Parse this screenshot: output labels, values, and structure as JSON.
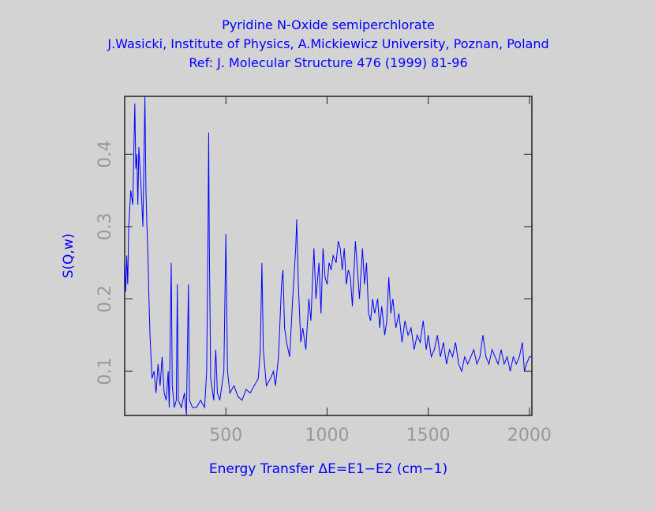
{
  "chart_data": {
    "type": "line",
    "title": [
      "Pyridine N-Oxide semiperchlorate",
      "J.Wasicki, Institute of Physics, A.Mickiewicz University, Poznan, Poland",
      "Ref: J. Molecular Structure 476 (1999) 81-96"
    ],
    "x_label": "Energy Transfer ΔE=E1−E2 (cm−1)",
    "y_label": "S(Q,w)",
    "xlim": [
      0,
      2012
    ],
    "ylim": [
      0.039,
      0.48
    ],
    "xticks": [
      500,
      1000,
      1500,
      2000
    ],
    "yticks": [
      0.1,
      0.2,
      0.3,
      0.4
    ],
    "series": [
      {
        "color": "#0000ff",
        "x": [
          0,
          5,
          10,
          15,
          20,
          30,
          40,
          50,
          55,
          60,
          65,
          70,
          80,
          90,
          100,
          105,
          110,
          115,
          120,
          125,
          135,
          145,
          155,
          165,
          175,
          185,
          195,
          205,
          215,
          220,
          230,
          235,
          245,
          255,
          260,
          265,
          280,
          295,
          305,
          315,
          320,
          335,
          355,
          375,
          395,
          405,
          412,
          415,
          418,
          425,
          440,
          450,
          458,
          470,
          490,
          500,
          508,
          520,
          540,
          560,
          580,
          600,
          620,
          640,
          660,
          670,
          678,
          685,
          700,
          720,
          735,
          745,
          760,
          775,
          782,
          790,
          800,
          815,
          830,
          845,
          850,
          858,
          870,
          880,
          895,
          910,
          920,
          935,
          945,
          960,
          970,
          980,
          990,
          1000,
          1010,
          1020,
          1030,
          1045,
          1055,
          1065,
          1075,
          1085,
          1095,
          1105,
          1115,
          1125,
          1140,
          1150,
          1160,
          1175,
          1185,
          1195,
          1205,
          1215,
          1225,
          1235,
          1250,
          1260,
          1270,
          1285,
          1295,
          1305,
          1315,
          1325,
          1340,
          1355,
          1370,
          1385,
          1400,
          1415,
          1430,
          1445,
          1460,
          1475,
          1490,
          1500,
          1515,
          1530,
          1545,
          1560,
          1575,
          1590,
          1605,
          1620,
          1635,
          1650,
          1665,
          1680,
          1695,
          1710,
          1725,
          1740,
          1755,
          1770,
          1785,
          1800,
          1815,
          1830,
          1845,
          1860,
          1875,
          1890,
          1905,
          1920,
          1935,
          1950,
          1965,
          1975,
          1985,
          2000,
          2012
        ],
        "values": [
          0.25,
          0.21,
          0.26,
          0.22,
          0.3,
          0.35,
          0.33,
          0.47,
          0.38,
          0.4,
          0.33,
          0.41,
          0.36,
          0.3,
          0.48,
          0.35,
          0.3,
          0.26,
          0.2,
          0.15,
          0.09,
          0.1,
          0.07,
          0.11,
          0.08,
          0.12,
          0.07,
          0.06,
          0.1,
          0.05,
          0.25,
          0.08,
          0.05,
          0.06,
          0.22,
          0.06,
          0.05,
          0.07,
          0.04,
          0.22,
          0.06,
          0.05,
          0.05,
          0.06,
          0.05,
          0.1,
          0.3,
          0.43,
          0.28,
          0.09,
          0.06,
          0.13,
          0.07,
          0.06,
          0.1,
          0.29,
          0.1,
          0.07,
          0.08,
          0.065,
          0.06,
          0.075,
          0.07,
          0.08,
          0.09,
          0.13,
          0.25,
          0.13,
          0.08,
          0.09,
          0.1,
          0.08,
          0.12,
          0.22,
          0.24,
          0.16,
          0.14,
          0.12,
          0.2,
          0.27,
          0.31,
          0.22,
          0.14,
          0.16,
          0.13,
          0.2,
          0.17,
          0.27,
          0.2,
          0.25,
          0.18,
          0.27,
          0.23,
          0.22,
          0.25,
          0.24,
          0.26,
          0.25,
          0.28,
          0.27,
          0.24,
          0.27,
          0.22,
          0.24,
          0.23,
          0.19,
          0.28,
          0.24,
          0.2,
          0.27,
          0.22,
          0.25,
          0.18,
          0.17,
          0.2,
          0.18,
          0.2,
          0.16,
          0.19,
          0.15,
          0.17,
          0.23,
          0.18,
          0.2,
          0.16,
          0.18,
          0.14,
          0.17,
          0.15,
          0.16,
          0.13,
          0.15,
          0.14,
          0.17,
          0.13,
          0.15,
          0.12,
          0.13,
          0.15,
          0.12,
          0.14,
          0.11,
          0.13,
          0.12,
          0.14,
          0.11,
          0.1,
          0.12,
          0.11,
          0.12,
          0.13,
          0.11,
          0.12,
          0.15,
          0.12,
          0.11,
          0.13,
          0.12,
          0.11,
          0.13,
          0.11,
          0.12,
          0.1,
          0.12,
          0.11,
          0.12,
          0.14,
          0.1,
          0.11,
          0.12,
          0.12
        ]
      }
    ]
  }
}
